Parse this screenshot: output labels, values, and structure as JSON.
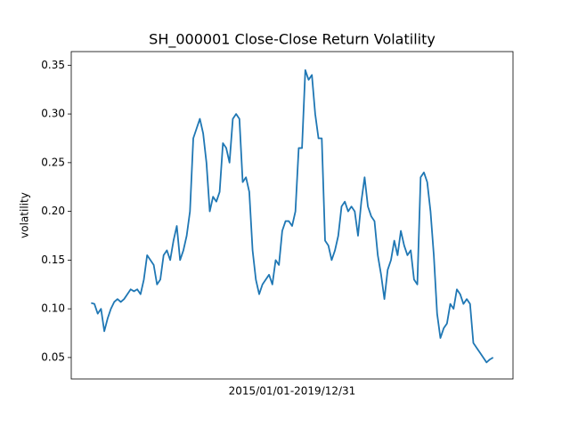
{
  "chart_data": {
    "type": "line",
    "title": "SH_000001 Close-Close Return Volatility",
    "xlabel": "2015/01/01-2019/12/31",
    "ylabel": "volatility",
    "color": "#1f77b4",
    "ylim": [
      0.028,
      0.364
    ],
    "yticks": [
      0.05,
      {
        "value": 0.1,
        "label": "0.10"
      },
      0.15,
      {
        "value": 0.2,
        "label": "0.20"
      },
      0.25,
      {
        "value": 0.3,
        "label": "0.30"
      },
      0.35
    ],
    "values": [
      0.106,
      0.105,
      0.095,
      0.1,
      0.077,
      0.09,
      0.1,
      0.107,
      0.11,
      0.107,
      0.11,
      0.115,
      0.12,
      0.118,
      0.12,
      0.115,
      0.13,
      0.155,
      0.15,
      0.145,
      0.125,
      0.13,
      0.155,
      0.16,
      0.15,
      0.17,
      0.185,
      0.15,
      0.16,
      0.175,
      0.2,
      0.275,
      0.285,
      0.295,
      0.28,
      0.25,
      0.2,
      0.215,
      0.21,
      0.22,
      0.27,
      0.265,
      0.25,
      0.295,
      0.3,
      0.295,
      0.23,
      0.235,
      0.22,
      0.16,
      0.13,
      0.115,
      0.125,
      0.13,
      0.135,
      0.125,
      0.15,
      0.145,
      0.18,
      0.19,
      0.19,
      0.185,
      0.2,
      0.265,
      0.265,
      0.345,
      0.335,
      0.34,
      0.3,
      0.275,
      0.275,
      0.17,
      0.165,
      0.15,
      0.16,
      0.175,
      0.205,
      0.21,
      0.2,
      0.205,
      0.2,
      0.175,
      0.21,
      0.235,
      0.205,
      0.195,
      0.19,
      0.155,
      0.135,
      0.11,
      0.14,
      0.15,
      0.17,
      0.155,
      0.18,
      0.165,
      0.155,
      0.16,
      0.13,
      0.125,
      0.235,
      0.24,
      0.23,
      0.2,
      0.155,
      0.095,
      0.07,
      0.08,
      0.085,
      0.105,
      0.1,
      0.12,
      0.115,
      0.105,
      0.11,
      0.105,
      0.065,
      0.06,
      0.055,
      0.05,
      0.045,
      0.048,
      0.05
    ]
  }
}
